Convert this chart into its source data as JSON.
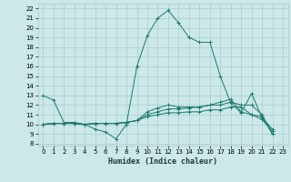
{
  "xlabel": "Humidex (Indice chaleur)",
  "bg_color": "#cce8e8",
  "grid_color": "#aacccc",
  "line_color": "#1a7a6e",
  "xlim": [
    -0.5,
    23.5
  ],
  "ylim": [
    7.8,
    22.5
  ],
  "xticks": [
    0,
    1,
    2,
    3,
    4,
    5,
    6,
    7,
    8,
    9,
    10,
    11,
    12,
    13,
    14,
    15,
    16,
    17,
    18,
    19,
    20,
    21,
    22,
    23
  ],
  "yticks": [
    8,
    9,
    10,
    11,
    12,
    13,
    14,
    15,
    16,
    17,
    18,
    19,
    20,
    21,
    22
  ],
  "series": [
    [
      0,
      13.0
    ],
    [
      1,
      12.5
    ],
    [
      2,
      10.2
    ],
    [
      3,
      10.2
    ],
    [
      4,
      10.0
    ],
    [
      5,
      9.5
    ],
    [
      6,
      9.2
    ],
    [
      7,
      8.5
    ],
    [
      8,
      10.0
    ],
    [
      9,
      16.0
    ],
    [
      10,
      19.2
    ],
    [
      11,
      21.0
    ],
    [
      12,
      21.8
    ],
    [
      13,
      20.5
    ],
    [
      14,
      19.0
    ],
    [
      15,
      18.5
    ],
    [
      16,
      18.5
    ],
    [
      17,
      15.0
    ],
    [
      18,
      12.2
    ],
    [
      19,
      11.2
    ],
    [
      20,
      13.2
    ],
    [
      21,
      10.7
    ],
    [
      22,
      9.5
    ]
  ],
  "flat_series": [
    [
      [
        0,
        10.0
      ],
      [
        1,
        10.1
      ],
      [
        2,
        10.1
      ],
      [
        3,
        10.1
      ],
      [
        4,
        10.0
      ],
      [
        5,
        10.1
      ],
      [
        6,
        10.1
      ],
      [
        7,
        10.1
      ],
      [
        8,
        10.2
      ],
      [
        9,
        10.4
      ],
      [
        10,
        10.8
      ],
      [
        11,
        11.0
      ],
      [
        12,
        11.2
      ],
      [
        13,
        11.2
      ],
      [
        14,
        11.3
      ],
      [
        15,
        11.3
      ],
      [
        16,
        11.5
      ],
      [
        17,
        11.5
      ],
      [
        18,
        11.8
      ],
      [
        19,
        11.8
      ],
      [
        20,
        11.0
      ],
      [
        21,
        10.5
      ],
      [
        22,
        9.3
      ]
    ],
    [
      [
        0,
        10.0
      ],
      [
        1,
        10.1
      ],
      [
        2,
        10.1
      ],
      [
        3,
        10.1
      ],
      [
        4,
        10.0
      ],
      [
        5,
        10.1
      ],
      [
        6,
        10.1
      ],
      [
        7,
        10.1
      ],
      [
        8,
        10.2
      ],
      [
        9,
        10.4
      ],
      [
        10,
        11.0
      ],
      [
        11,
        11.3
      ],
      [
        12,
        11.6
      ],
      [
        13,
        11.6
      ],
      [
        14,
        11.7
      ],
      [
        15,
        11.8
      ],
      [
        16,
        12.0
      ],
      [
        17,
        12.0
      ],
      [
        18,
        12.3
      ],
      [
        19,
        12.0
      ],
      [
        20,
        12.0
      ],
      [
        21,
        11.0
      ],
      [
        22,
        9.0
      ]
    ],
    [
      [
        0,
        10.0
      ],
      [
        1,
        10.1
      ],
      [
        2,
        10.1
      ],
      [
        3,
        10.1
      ],
      [
        4,
        10.0
      ],
      [
        5,
        10.1
      ],
      [
        6,
        10.1
      ],
      [
        7,
        10.1
      ],
      [
        8,
        10.2
      ],
      [
        9,
        10.4
      ],
      [
        10,
        11.3
      ],
      [
        11,
        11.7
      ],
      [
        12,
        12.0
      ],
      [
        13,
        11.8
      ],
      [
        14,
        11.8
      ],
      [
        15,
        11.8
      ],
      [
        16,
        12.0
      ],
      [
        17,
        12.3
      ],
      [
        18,
        12.6
      ],
      [
        19,
        11.3
      ],
      [
        20,
        11.0
      ],
      [
        21,
        10.8
      ],
      [
        22,
        9.0
      ]
    ]
  ]
}
